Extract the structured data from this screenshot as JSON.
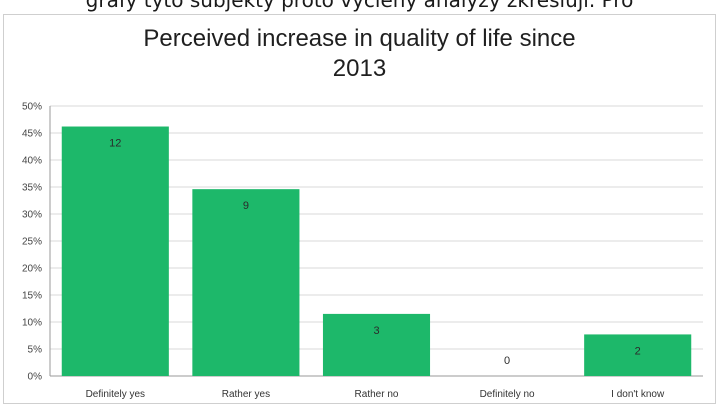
{
  "cropped_text": "grafy tyto subjekty proto vyčleny analýzy zkresluji. Pro",
  "chart_data": {
    "type": "bar",
    "title_lines": [
      "Perceived increase in quality of life since",
      "2013"
    ],
    "categories": [
      "Definitely yes",
      "Rather yes",
      "Rather no",
      "Definitely no",
      "I don't know"
    ],
    "values": [
      46.2,
      34.6,
      11.5,
      0,
      7.7
    ],
    "data_labels": [
      "12",
      "9",
      "3",
      "0",
      "2"
    ],
    "y_ticks": [
      "0%",
      "5%",
      "10%",
      "15%",
      "20%",
      "25%",
      "30%",
      "35%",
      "40%",
      "45%",
      "50%"
    ],
    "ylim": [
      0,
      50
    ],
    "grid": true,
    "bar_color": "#1db86a"
  }
}
